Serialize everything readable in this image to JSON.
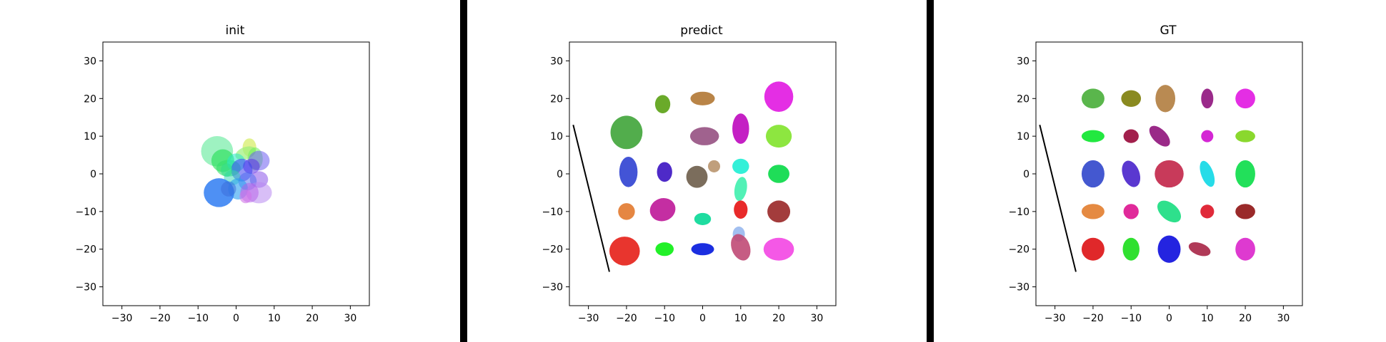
{
  "chart_data": [
    {
      "type": "scatter",
      "title": "init",
      "xlim": [
        -35,
        35
      ],
      "ylim": [
        -35,
        35
      ],
      "xticks": [
        -30,
        -20,
        -10,
        0,
        10,
        20,
        30
      ],
      "yticks": [
        -30,
        -20,
        -10,
        0,
        10,
        20,
        30
      ],
      "ellipses": [
        {
          "x": -5,
          "y": 6,
          "rx": 4.2,
          "ry": 4.0,
          "angle": 0,
          "color": "#3ee584",
          "opacity": 0.5
        },
        {
          "x": 3.5,
          "y": 7,
          "rx": 1.8,
          "ry": 2.4,
          "angle": 0,
          "color": "#d9ef74",
          "opacity": 0.8
        },
        {
          "x": 2.5,
          "y": 5.5,
          "rx": 2.8,
          "ry": 1.6,
          "angle": 20,
          "color": "#9df07a",
          "opacity": 0.7
        },
        {
          "x": -3.5,
          "y": 3.5,
          "rx": 3.0,
          "ry": 3.0,
          "angle": 0,
          "color": "#1fdd52",
          "opacity": 0.6
        },
        {
          "x": -2,
          "y": 1.5,
          "rx": 3.2,
          "ry": 2.2,
          "angle": 0,
          "color": "#34e06a",
          "opacity": 0.6
        },
        {
          "x": 5,
          "y": 4,
          "rx": 2.0,
          "ry": 3.0,
          "angle": 0,
          "color": "#6cf05e",
          "opacity": 0.55
        },
        {
          "x": 0,
          "y": 3,
          "rx": 2.4,
          "ry": 2.4,
          "angle": 0,
          "color": "#26e8c9",
          "opacity": 0.55
        },
        {
          "x": 6,
          "y": 3.5,
          "rx": 2.8,
          "ry": 2.6,
          "angle": 0,
          "color": "#6c5cf0",
          "opacity": 0.55
        },
        {
          "x": 4,
          "y": 2,
          "rx": 2.2,
          "ry": 2.0,
          "angle": 0,
          "color": "#5b33e6",
          "opacity": 0.55
        },
        {
          "x": 1.5,
          "y": 1,
          "rx": 2.8,
          "ry": 3.0,
          "angle": 0,
          "color": "#3b3ff0",
          "opacity": 0.55
        },
        {
          "x": -1,
          "y": -1,
          "rx": 2.2,
          "ry": 2.0,
          "angle": 0,
          "color": "#2ed6b4",
          "opacity": 0.5
        },
        {
          "x": 6,
          "y": -1.5,
          "rx": 2.4,
          "ry": 2.2,
          "angle": 0,
          "color": "#8a54ea",
          "opacity": 0.55
        },
        {
          "x": 3,
          "y": -2,
          "rx": 2.4,
          "ry": 2.4,
          "angle": 0,
          "color": "#4b6af0",
          "opacity": 0.5
        },
        {
          "x": 0.5,
          "y": -4,
          "rx": 2.6,
          "ry": 2.8,
          "angle": 0,
          "color": "#2a9ef0",
          "opacity": 0.6
        },
        {
          "x": 6,
          "y": -5,
          "rx": 3.4,
          "ry": 2.8,
          "angle": 0,
          "color": "#b889f0",
          "opacity": 0.55
        },
        {
          "x": 3.5,
          "y": -5,
          "rx": 2.4,
          "ry": 2.6,
          "angle": 0,
          "color": "#b45ce8",
          "opacity": 0.5
        },
        {
          "x": 2.5,
          "y": -6,
          "rx": 1.6,
          "ry": 1.8,
          "angle": 0,
          "color": "#d074e8",
          "opacity": 0.6
        },
        {
          "x": -4.5,
          "y": -5,
          "rx": 4.0,
          "ry": 3.8,
          "angle": 0,
          "color": "#2f7cf2",
          "opacity": 0.85
        },
        {
          "x": -2,
          "y": -4,
          "rx": 2.0,
          "ry": 2.0,
          "angle": 0,
          "color": "#3a6ad8",
          "opacity": 0.5
        },
        {
          "x": -2.5,
          "y": 1,
          "rx": 1.5,
          "ry": 1.8,
          "angle": 0,
          "color": "#2cdc8a",
          "opacity": 0.5
        }
      ],
      "line": null
    },
    {
      "type": "scatter",
      "title": "predict",
      "xlim": [
        -35,
        35
      ],
      "ylim": [
        -35,
        35
      ],
      "xticks": [
        -30,
        -20,
        -10,
        0,
        10,
        20,
        30
      ],
      "yticks": [
        -30,
        -20,
        -10,
        0,
        10,
        20,
        30
      ],
      "ellipses": [
        {
          "x": -20,
          "y": 11,
          "rx": 4.2,
          "ry": 4.4,
          "angle": 0,
          "color": "#52ad4c",
          "opacity": 1
        },
        {
          "x": -10.5,
          "y": 18.5,
          "rx": 2.0,
          "ry": 2.4,
          "angle": 0,
          "color": "#6aaa2a",
          "opacity": 1
        },
        {
          "x": 0,
          "y": 20,
          "rx": 3.2,
          "ry": 1.8,
          "angle": 0,
          "color": "#b98447",
          "opacity": 1
        },
        {
          "x": 20,
          "y": 20.5,
          "rx": 3.8,
          "ry": 4.0,
          "angle": 0,
          "color": "#e42ee4",
          "opacity": 1
        },
        {
          "x": 0.5,
          "y": 10,
          "rx": 3.8,
          "ry": 2.4,
          "angle": 0,
          "color": "#a0628e",
          "opacity": 1
        },
        {
          "x": 10,
          "y": 12,
          "rx": 2.2,
          "ry": 4.0,
          "angle": 0,
          "color": "#c420c4",
          "opacity": 1
        },
        {
          "x": 20,
          "y": 10,
          "rx": 3.4,
          "ry": 3.0,
          "angle": 0,
          "color": "#8de640",
          "opacity": 1
        },
        {
          "x": -19.5,
          "y": 0.5,
          "rx": 2.4,
          "ry": 4.0,
          "angle": 0,
          "color": "#4354d6",
          "opacity": 1
        },
        {
          "x": -10,
          "y": 0.5,
          "rx": 2.0,
          "ry": 2.6,
          "angle": 0,
          "color": "#4e2ac8",
          "opacity": 1
        },
        {
          "x": 3,
          "y": 2,
          "rx": 1.6,
          "ry": 1.6,
          "angle": 0,
          "color": "#c09f7c",
          "opacity": 1
        },
        {
          "x": -1.5,
          "y": -0.8,
          "rx": 2.8,
          "ry": 2.9,
          "angle": 0,
          "color": "#7b6d5c",
          "opacity": 1
        },
        {
          "x": 10,
          "y": 2,
          "rx": 2.2,
          "ry": 2.0,
          "angle": 0,
          "color": "#33f0d8",
          "opacity": 1
        },
        {
          "x": 20,
          "y": 0,
          "rx": 2.8,
          "ry": 2.4,
          "angle": 0,
          "color": "#1fdd58",
          "opacity": 1
        },
        {
          "x": 10,
          "y": -4,
          "rx": 1.6,
          "ry": 3.2,
          "angle": -10,
          "color": "#3ff0ae",
          "opacity": 0.9
        },
        {
          "x": -20,
          "y": -10,
          "rx": 2.2,
          "ry": 2.2,
          "angle": 0,
          "color": "#e58642",
          "opacity": 1
        },
        {
          "x": -10.5,
          "y": -9.5,
          "rx": 3.4,
          "ry": 3.0,
          "angle": 20,
          "color": "#c42ea2",
          "opacity": 1
        },
        {
          "x": 0,
          "y": -12,
          "rx": 2.2,
          "ry": 1.6,
          "angle": 0,
          "color": "#1fdca0",
          "opacity": 1
        },
        {
          "x": 10,
          "y": -9.5,
          "rx": 1.8,
          "ry": 2.4,
          "angle": 0,
          "color": "#e82a2a",
          "opacity": 1
        },
        {
          "x": 20,
          "y": -10,
          "rx": 3.0,
          "ry": 2.9,
          "angle": 0,
          "color": "#a33c3c",
          "opacity": 1
        },
        {
          "x": 9.5,
          "y": -16,
          "rx": 1.6,
          "ry": 2.0,
          "angle": 0,
          "color": "#a2bff0",
          "opacity": 1
        },
        {
          "x": 10,
          "y": -19.5,
          "rx": 2.4,
          "ry": 3.6,
          "angle": 20,
          "color": "#c04a76",
          "opacity": 0.9
        },
        {
          "x": -20.5,
          "y": -20.5,
          "rx": 4.0,
          "ry": 3.8,
          "angle": 0,
          "color": "#e8352e",
          "opacity": 1
        },
        {
          "x": -10,
          "y": -20,
          "rx": 2.4,
          "ry": 1.8,
          "angle": 0,
          "color": "#22f028",
          "opacity": 1
        },
        {
          "x": 0,
          "y": -20,
          "rx": 3.0,
          "ry": 1.6,
          "angle": 0,
          "color": "#1b2ee0",
          "opacity": 1
        },
        {
          "x": 20,
          "y": -20,
          "rx": 4.0,
          "ry": 3.0,
          "angle": 0,
          "color": "#f458e6",
          "opacity": 1
        }
      ],
      "line": {
        "x": [
          -34,
          -24.5
        ],
        "y": [
          13,
          -26
        ]
      }
    },
    {
      "type": "scatter",
      "title": "GT",
      "xlim": [
        -35,
        35
      ],
      "ylim": [
        -35,
        35
      ],
      "xticks": [
        -30,
        -20,
        -10,
        0,
        10,
        20,
        30
      ],
      "yticks": [
        -30,
        -20,
        -10,
        0,
        10,
        20,
        30
      ],
      "ellipses": [
        {
          "x": -20,
          "y": 20,
          "rx": 3.0,
          "ry": 2.6,
          "angle": 0,
          "color": "#5ab64c",
          "opacity": 1
        },
        {
          "x": -10,
          "y": 20,
          "rx": 2.6,
          "ry": 2.2,
          "angle": 0,
          "color": "#8a8a20",
          "opacity": 1
        },
        {
          "x": -1,
          "y": 20,
          "rx": 2.6,
          "ry": 3.6,
          "angle": 0,
          "color": "#b98a52",
          "opacity": 1
        },
        {
          "x": 10,
          "y": 20,
          "rx": 1.6,
          "ry": 2.6,
          "angle": 0,
          "color": "#9a2a8a",
          "opacity": 1
        },
        {
          "x": 20,
          "y": 20,
          "rx": 2.6,
          "ry": 2.6,
          "angle": 0,
          "color": "#e42ee4",
          "opacity": 1
        },
        {
          "x": -20,
          "y": 10,
          "rx": 3.0,
          "ry": 1.6,
          "angle": 0,
          "color": "#22e840",
          "opacity": 1
        },
        {
          "x": -10,
          "y": 10,
          "rx": 2.0,
          "ry": 1.8,
          "angle": 0,
          "color": "#a2204c",
          "opacity": 1
        },
        {
          "x": -2.5,
          "y": 10,
          "rx": 3.4,
          "ry": 1.8,
          "angle": -45,
          "color": "#9a2a88",
          "opacity": 1
        },
        {
          "x": 10,
          "y": 10,
          "rx": 1.6,
          "ry": 1.6,
          "angle": 0,
          "color": "#d426d4",
          "opacity": 1
        },
        {
          "x": 20,
          "y": 10,
          "rx": 2.6,
          "ry": 1.6,
          "angle": 0,
          "color": "#8ad82e",
          "opacity": 1
        },
        {
          "x": -20,
          "y": 0,
          "rx": 3.0,
          "ry": 3.6,
          "angle": 0,
          "color": "#4458d0",
          "opacity": 1
        },
        {
          "x": -10,
          "y": 0,
          "rx": 2.2,
          "ry": 3.6,
          "angle": 20,
          "color": "#5a38d0",
          "opacity": 1
        },
        {
          "x": 0,
          "y": 0,
          "rx": 3.8,
          "ry": 3.6,
          "angle": 0,
          "color": "#c83a5a",
          "opacity": 1
        },
        {
          "x": 10,
          "y": 0,
          "rx": 1.6,
          "ry": 3.6,
          "angle": 20,
          "color": "#26dce8",
          "opacity": 1
        },
        {
          "x": 20,
          "y": 0,
          "rx": 2.6,
          "ry": 3.6,
          "angle": 0,
          "color": "#22e05a",
          "opacity": 1
        },
        {
          "x": -20,
          "y": -10,
          "rx": 3.0,
          "ry": 2.0,
          "angle": 0,
          "color": "#e58a42",
          "opacity": 1
        },
        {
          "x": -10,
          "y": -10,
          "rx": 2.0,
          "ry": 2.0,
          "angle": 0,
          "color": "#e02a9a",
          "opacity": 1
        },
        {
          "x": 0,
          "y": -10,
          "rx": 3.6,
          "ry": 2.2,
          "angle": -40,
          "color": "#2ee08c",
          "opacity": 1
        },
        {
          "x": 10,
          "y": -10,
          "rx": 1.8,
          "ry": 1.8,
          "angle": 20,
          "color": "#e02a3a",
          "opacity": 1
        },
        {
          "x": 20,
          "y": -10,
          "rx": 2.6,
          "ry": 2.0,
          "angle": 0,
          "color": "#9a2a2a",
          "opacity": 1
        },
        {
          "x": -20,
          "y": -20,
          "rx": 3.0,
          "ry": 3.0,
          "angle": 0,
          "color": "#e0282a",
          "opacity": 1
        },
        {
          "x": -10,
          "y": -20,
          "rx": 2.2,
          "ry": 3.0,
          "angle": 0,
          "color": "#30e030",
          "opacity": 1
        },
        {
          "x": 0,
          "y": -20,
          "rx": 3.0,
          "ry": 3.6,
          "angle": 0,
          "color": "#2424e0",
          "opacity": 1
        },
        {
          "x": 8,
          "y": -20,
          "rx": 3.0,
          "ry": 1.6,
          "angle": -20,
          "color": "#b03a58",
          "opacity": 1
        },
        {
          "x": 20,
          "y": -20,
          "rx": 2.6,
          "ry": 3.0,
          "angle": 0,
          "color": "#de3ad0",
          "opacity": 1
        }
      ],
      "line": {
        "x": [
          -34,
          -24.5
        ],
        "y": [
          13,
          -26
        ]
      }
    }
  ],
  "style": {
    "divider_color": "#000000",
    "axes_color": "#000000",
    "line_color": "#000000"
  }
}
